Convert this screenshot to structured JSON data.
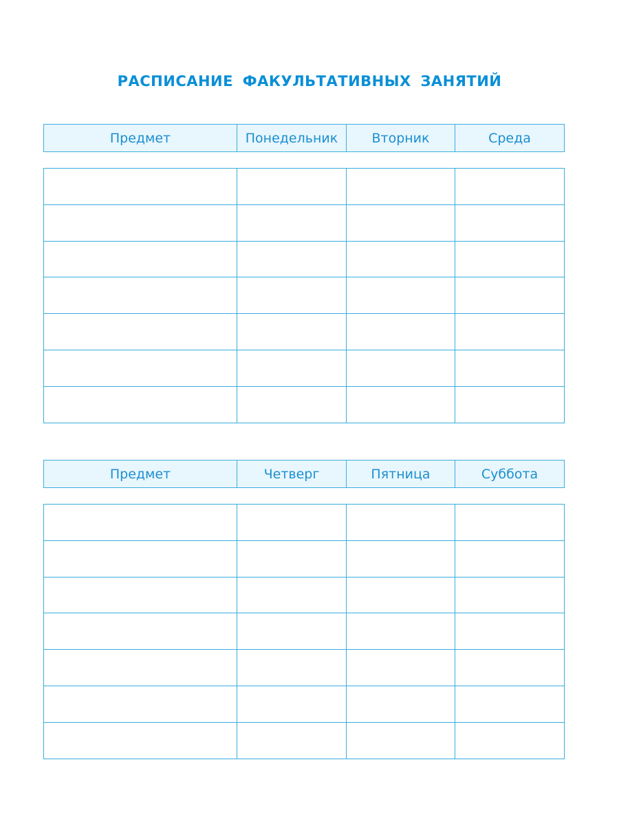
{
  "title": "РАСПИСАНИЕ  ФАКУЛЬТАТИВНЫХ  ЗАНЯТИЙ",
  "colors": {
    "title": "#0a8fd6",
    "header_bg": "#e8f6fd",
    "border": "#3aaede"
  },
  "table1": {
    "headers": [
      "Предмет",
      "Понедельник",
      "Вторник",
      "Среда"
    ],
    "rows": 7
  },
  "table2": {
    "headers": [
      "Предмет",
      "Четверг",
      "Пятница",
      "Суббота"
    ],
    "rows": 7
  }
}
